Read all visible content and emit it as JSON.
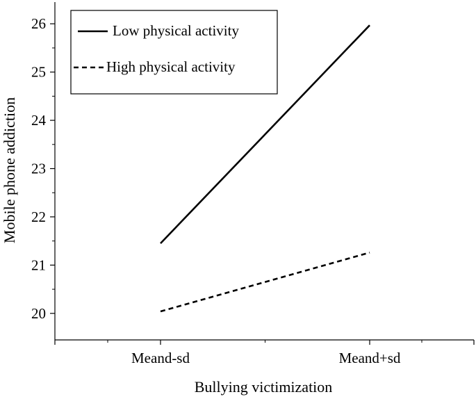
{
  "chart_data": {
    "type": "line",
    "title": "",
    "xlabel": "Bullying victimization",
    "ylabel": "Mobile phone addiction",
    "categories": [
      "Meand-sd",
      "Meand+sd"
    ],
    "yticks": [
      20,
      21,
      22,
      23,
      24,
      25,
      26
    ],
    "ylim": [
      19.45,
      26.45
    ],
    "grid": false,
    "legend_position": "top-left",
    "series": [
      {
        "name": "Low physical activity",
        "values": [
          21.45,
          25.97
        ],
        "line_style": "solid",
        "color": "#000000"
      },
      {
        "name": "High physical activity",
        "values": [
          20.04,
          21.26
        ],
        "line_style": "dashed",
        "color": "#000000"
      }
    ]
  }
}
